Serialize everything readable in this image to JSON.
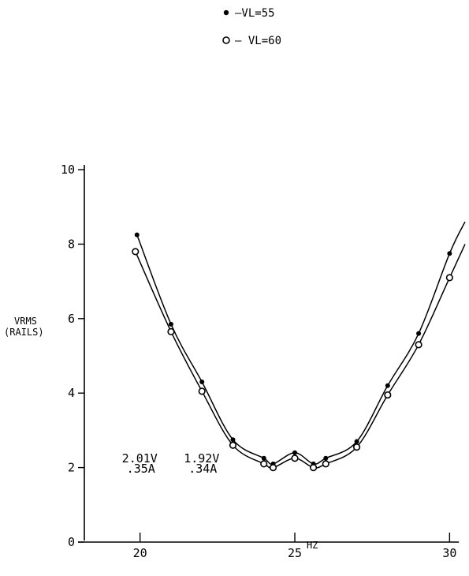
{
  "chart_data": {
    "type": "line",
    "title": "",
    "xlabel": "HZ",
    "ylabel_line1": "VRMS",
    "ylabel_line2": "(RAILS)",
    "xlim": [
      18.2,
      30.5
    ],
    "ylim": [
      0,
      10
    ],
    "xticks": [
      20,
      25,
      30
    ],
    "xtick_labels": [
      "20",
      "25",
      "30"
    ],
    "yticks": [
      0,
      2,
      4,
      6,
      8,
      10
    ],
    "ytick_labels": [
      "0",
      "2",
      "4",
      "6",
      "8",
      "10"
    ],
    "grid": false,
    "legend_position": "top-center",
    "legend": [
      {
        "marker": "filled",
        "label": "—VL=55"
      },
      {
        "marker": "open",
        "label": "— VL=60"
      }
    ],
    "series": [
      {
        "name": "VL=55",
        "marker": "filled",
        "color": "#000000",
        "x": [
          19.9,
          21.0,
          22.0,
          23.0,
          24.0,
          24.3,
          25.0,
          25.6,
          26.0,
          27.0,
          28.0,
          29.0,
          30.0,
          30.5
        ],
        "y": [
          8.25,
          5.85,
          4.3,
          2.75,
          2.25,
          2.1,
          2.4,
          2.1,
          2.25,
          2.7,
          4.2,
          5.6,
          7.75,
          8.6
        ]
      },
      {
        "name": "VL=60",
        "marker": "open",
        "color": "#000000",
        "x": [
          19.85,
          21.0,
          22.0,
          23.0,
          24.0,
          24.3,
          25.0,
          25.6,
          26.0,
          27.0,
          28.0,
          29.0,
          30.0,
          30.5
        ],
        "y": [
          7.8,
          5.65,
          4.05,
          2.6,
          2.1,
          2.0,
          2.25,
          2.0,
          2.1,
          2.55,
          3.95,
          5.3,
          7.1,
          8.0
        ]
      }
    ],
    "annotations": [
      {
        "x": 20.0,
        "lines": [
          "2.01V",
          ".35A"
        ]
      },
      {
        "x": 22.0,
        "lines": [
          "1.92V",
          ".34A"
        ]
      }
    ]
  }
}
